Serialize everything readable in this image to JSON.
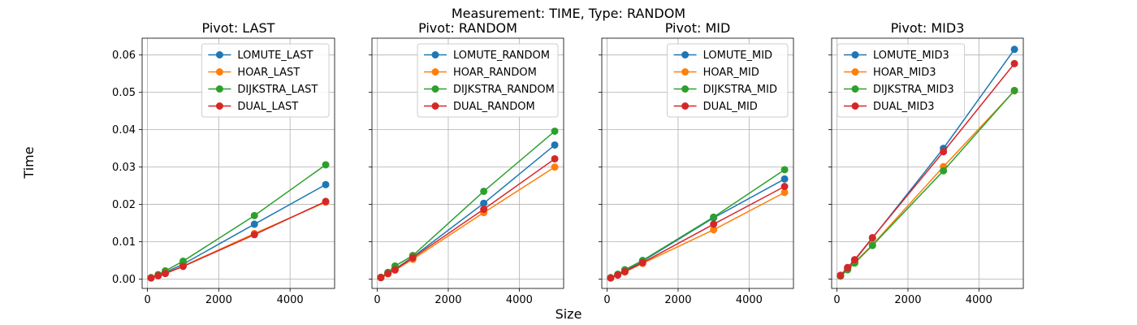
{
  "figure": {
    "title": "Measurement: TIME, Type: RANDOM",
    "xlabel": "Size",
    "ylabel": "Time"
  },
  "colors": {
    "LOMUTE": "#1f77b4",
    "HOAR": "#ff7f0e",
    "DIJKSTRA": "#2ca02c",
    "DUAL": "#d62728",
    "grid": "#b0b0b0"
  },
  "chart_data": [
    {
      "type": "line",
      "title": "Pivot: LAST",
      "xlim": [
        -150,
        5250
      ],
      "ylim": [
        -0.0025,
        0.0645
      ],
      "x_ticks": [
        0,
        2000,
        4000
      ],
      "y_ticks": [
        0.0,
        0.01,
        0.02,
        0.03,
        0.04,
        0.05,
        0.06
      ],
      "y_tick_labels": [
        "0.00",
        "0.01",
        "0.02",
        "0.03",
        "0.04",
        "0.05",
        "0.06"
      ],
      "grid": true,
      "legend_position": "top-right",
      "x": [
        100,
        300,
        500,
        1000,
        3000,
        5000
      ],
      "series": [
        {
          "name": "LOMUTE_LAST",
          "algo": "LOMUTE",
          "values": [
            0.0003,
            0.001,
            0.0018,
            0.004,
            0.0147,
            0.0253
          ]
        },
        {
          "name": "HOAR_LAST",
          "algo": "HOAR",
          "values": [
            0.0003,
            0.0009,
            0.0015,
            0.0035,
            0.0122,
            0.0206
          ]
        },
        {
          "name": "DIJKSTRA_LAST",
          "algo": "DIJKSTRA",
          "values": [
            0.0004,
            0.0012,
            0.0022,
            0.0048,
            0.017,
            0.0306
          ]
        },
        {
          "name": "DUAL_LAST",
          "algo": "DUAL",
          "values": [
            0.0003,
            0.0009,
            0.0015,
            0.0034,
            0.0119,
            0.0208
          ]
        }
      ]
    },
    {
      "type": "line",
      "title": "Pivot: RANDOM",
      "xlim": [
        -150,
        5250
      ],
      "ylim": [
        -0.0025,
        0.0645
      ],
      "x_ticks": [
        0,
        2000,
        4000
      ],
      "y_ticks": [
        0.0,
        0.01,
        0.02,
        0.03,
        0.04,
        0.05,
        0.06
      ],
      "grid": true,
      "legend_position": "top-right",
      "x": [
        100,
        300,
        500,
        1000,
        3000,
        5000
      ],
      "series": [
        {
          "name": "LOMUTE_RANDOM",
          "algo": "LOMUTE",
          "values": [
            0.0004,
            0.0015,
            0.0027,
            0.0059,
            0.0203,
            0.0359
          ]
        },
        {
          "name": "HOAR_RANDOM",
          "algo": "HOAR",
          "values": [
            0.0004,
            0.0014,
            0.0024,
            0.0053,
            0.0178,
            0.03
          ]
        },
        {
          "name": "DIJKSTRA_RANDOM",
          "algo": "DIJKSTRA",
          "values": [
            0.0005,
            0.0018,
            0.0035,
            0.0063,
            0.0235,
            0.0396
          ]
        },
        {
          "name": "DUAL_RANDOM",
          "algo": "DUAL",
          "values": [
            0.0004,
            0.0015,
            0.0025,
            0.0057,
            0.0187,
            0.0322
          ]
        }
      ]
    },
    {
      "type": "line",
      "title": "Pivot: MID",
      "xlim": [
        -150,
        5250
      ],
      "ylim": [
        -0.0025,
        0.0645
      ],
      "x_ticks": [
        0,
        2000,
        4000
      ],
      "y_ticks": [
        0.0,
        0.01,
        0.02,
        0.03,
        0.04,
        0.05,
        0.06
      ],
      "grid": true,
      "legend_position": "top-right",
      "x": [
        100,
        300,
        500,
        1000,
        3000,
        5000
      ],
      "series": [
        {
          "name": "LOMUTE_MID",
          "algo": "LOMUTE",
          "values": [
            0.0003,
            0.0012,
            0.0022,
            0.0048,
            0.0164,
            0.0268
          ]
        },
        {
          "name": "HOAR_MID",
          "algo": "HOAR",
          "values": [
            0.0003,
            0.0011,
            0.0019,
            0.0042,
            0.0132,
            0.0232
          ]
        },
        {
          "name": "DIJKSTRA_MID",
          "algo": "DIJKSTRA",
          "values": [
            0.0004,
            0.0013,
            0.0025,
            0.005,
            0.0166,
            0.0293
          ]
        },
        {
          "name": "DUAL_MID",
          "algo": "DUAL",
          "values": [
            0.0003,
            0.0011,
            0.002,
            0.0044,
            0.0147,
            0.0248
          ]
        }
      ]
    },
    {
      "type": "line",
      "title": "Pivot: MID3",
      "xlim": [
        -150,
        5250
      ],
      "ylim": [
        -0.0025,
        0.0645
      ],
      "x_ticks": [
        0,
        2000,
        4000
      ],
      "y_ticks": [
        0.0,
        0.01,
        0.02,
        0.03,
        0.04,
        0.05,
        0.06
      ],
      "grid": true,
      "legend_position": "top-left",
      "x": [
        100,
        300,
        500,
        1000,
        3000,
        5000
      ],
      "series": [
        {
          "name": "LOMUTE_MID3",
          "algo": "LOMUTE",
          "values": [
            0.001,
            0.003,
            0.005,
            0.011,
            0.035,
            0.0615
          ]
        },
        {
          "name": "HOAR_MID3",
          "algo": "HOAR",
          "values": [
            0.0008,
            0.0026,
            0.0045,
            0.0092,
            0.0301,
            0.0504
          ]
        },
        {
          "name": "DIJKSTRA_MID3",
          "algo": "DIJKSTRA",
          "values": [
            0.0008,
            0.0025,
            0.0043,
            0.009,
            0.029,
            0.0505
          ]
        },
        {
          "name": "DUAL_MID3",
          "algo": "DUAL",
          "values": [
            0.001,
            0.0031,
            0.0052,
            0.0111,
            0.0341,
            0.0577
          ]
        }
      ]
    }
  ]
}
